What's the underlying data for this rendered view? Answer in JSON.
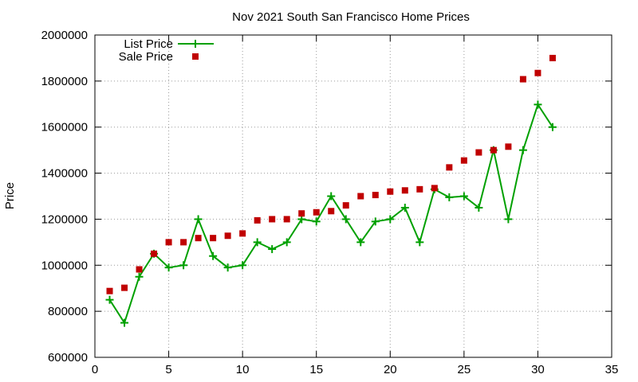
{
  "chart_data": {
    "type": "line",
    "title": "Nov 2021 South San Francisco Home Prices",
    "xlabel": "",
    "ylabel": "Price",
    "xlim": [
      0,
      35
    ],
    "ylim": [
      600000,
      2000000
    ],
    "xticks": [
      0,
      5,
      10,
      15,
      20,
      25,
      30,
      35
    ],
    "yticks": [
      600000,
      800000,
      1000000,
      1200000,
      1400000,
      1600000,
      1800000,
      2000000
    ],
    "grid": true,
    "legend_position": "top-left",
    "series": [
      {
        "name": "List Price",
        "kind": "line-points",
        "color": "#00a000",
        "marker": "plus",
        "x": [
          1,
          2,
          3,
          4,
          5,
          6,
          7,
          8,
          9,
          10,
          11,
          12,
          13,
          14,
          15,
          16,
          17,
          18,
          19,
          20,
          21,
          22,
          23,
          24,
          25,
          26,
          27,
          28,
          29,
          30,
          31
        ],
        "y": [
          850000,
          750000,
          950000,
          1050000,
          990000,
          1000000,
          1200000,
          1040000,
          990000,
          1000000,
          1100000,
          1070000,
          1100000,
          1200000,
          1190000,
          1300000,
          1200000,
          1100000,
          1190000,
          1200000,
          1250000,
          1100000,
          1330000,
          1295000,
          1300000,
          1250000,
          1500000,
          1200000,
          1500000,
          1698000,
          1600000
        ]
      },
      {
        "name": "Sale Price",
        "kind": "points",
        "color": "#c00000",
        "marker": "square",
        "x": [
          1,
          2,
          3,
          4,
          5,
          6,
          7,
          8,
          9,
          10,
          11,
          12,
          13,
          14,
          15,
          16,
          17,
          18,
          19,
          20,
          21,
          22,
          23,
          24,
          25,
          26,
          27,
          28,
          29,
          30,
          31
        ],
        "y": [
          888000,
          902000,
          982000,
          1050000,
          1100000,
          1100000,
          1118000,
          1118000,
          1128000,
          1138000,
          1195000,
          1200000,
          1200000,
          1225000,
          1230000,
          1235000,
          1260000,
          1300000,
          1305000,
          1320000,
          1325000,
          1330000,
          1335000,
          1425000,
          1455000,
          1490000,
          1500000,
          1515000,
          1808000,
          1835000,
          1900000
        ]
      }
    ]
  }
}
